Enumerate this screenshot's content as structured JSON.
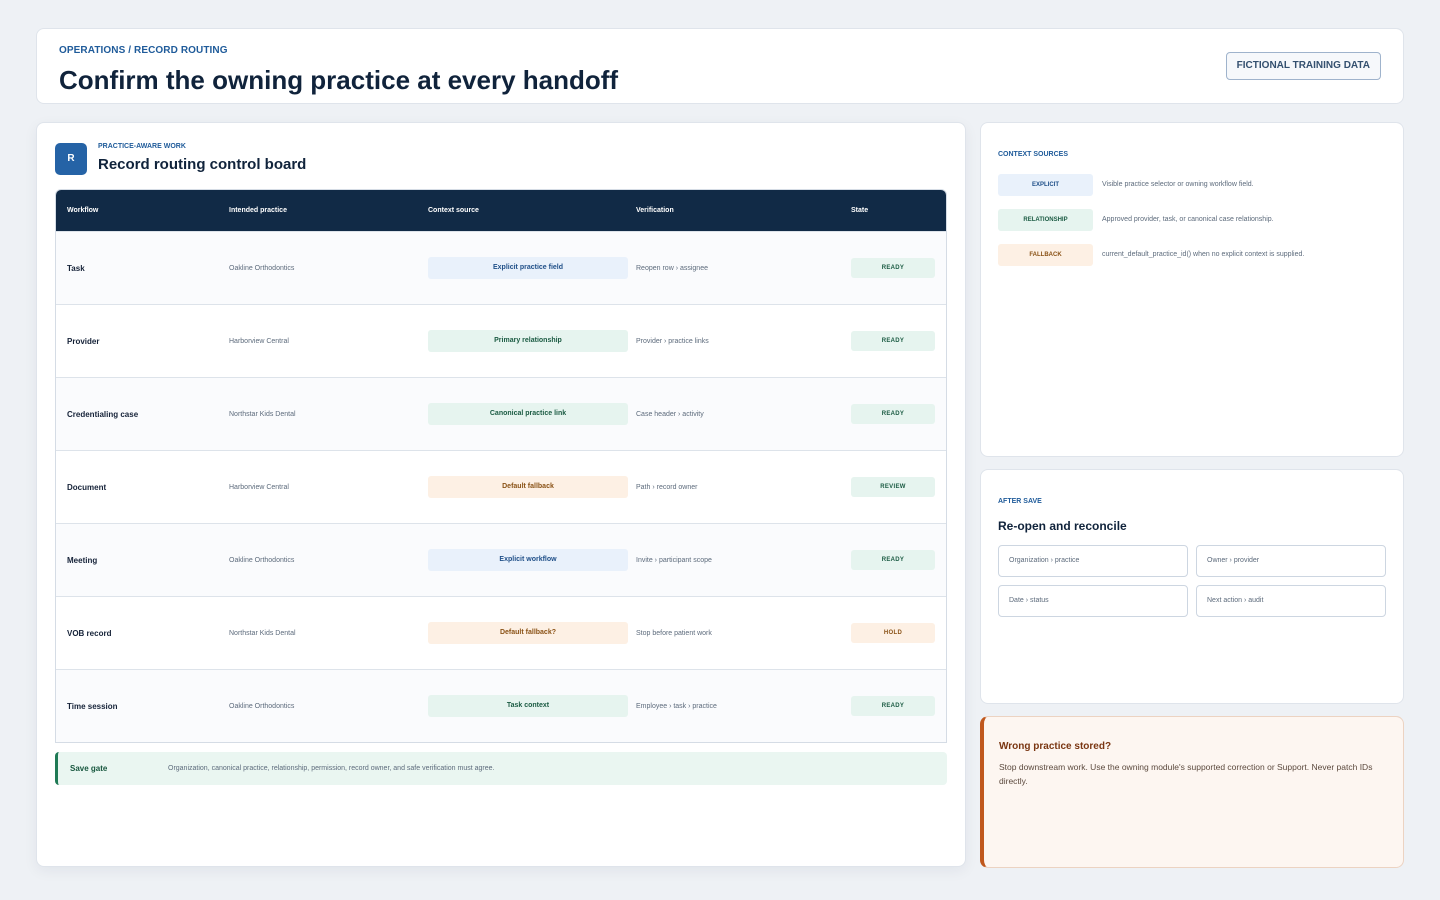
{
  "header": {
    "breadcrumb": "OPERATIONS / RECORD ROUTING",
    "title": "Confirm the owning practice at every handoff",
    "badge": "FICTIONAL TRAINING DATA"
  },
  "board": {
    "logo_letter": "R",
    "eyebrow": "PRACTICE-AWARE WORK",
    "title": "Record routing control board",
    "columns": [
      "Workflow",
      "Intended practice",
      "Context source",
      "Verification",
      "State"
    ],
    "rows": [
      {
        "workflow": "Task",
        "practice": "Oakline Orthodontics",
        "source": "Explicit practice field",
        "source_kind": "explicit",
        "verification": "Reopen row › assignee",
        "state": "READY",
        "state_kind": "ready"
      },
      {
        "workflow": "Provider",
        "practice": "Harborview Central",
        "source": "Primary relationship",
        "source_kind": "relationship",
        "verification": "Provider › practice links",
        "state": "READY",
        "state_kind": "ready"
      },
      {
        "workflow": "Credentialing case",
        "practice": "Northstar Kids Dental",
        "source": "Canonical practice link",
        "source_kind": "relationship",
        "verification": "Case header › activity",
        "state": "READY",
        "state_kind": "ready"
      },
      {
        "workflow": "Document",
        "practice": "Harborview Central",
        "source": "Default fallback",
        "source_kind": "fallback",
        "verification": "Path › record owner",
        "state": "REVIEW",
        "state_kind": "review"
      },
      {
        "workflow": "Meeting",
        "practice": "Oakline Orthodontics",
        "source": "Explicit workflow",
        "source_kind": "explicit",
        "verification": "Invite › participant scope",
        "state": "READY",
        "state_kind": "ready"
      },
      {
        "workflow": "VOB record",
        "practice": "Northstar Kids Dental",
        "source": "Default fallback?",
        "source_kind": "fallback",
        "verification": "Stop before patient work",
        "state": "HOLD",
        "state_kind": "hold"
      },
      {
        "workflow": "Time session",
        "practice": "Oakline Orthodontics",
        "source": "Task context",
        "source_kind": "relationship",
        "verification": "Employee › task › practice",
        "state": "READY",
        "state_kind": "ready"
      }
    ],
    "gate": {
      "label": "Save gate",
      "text": "Organization, canonical practice, relationship, permission, record owner, and safe verification must agree."
    }
  },
  "context_sources": {
    "eyebrow": "CONTEXT SOURCES",
    "items": [
      {
        "tag": "EXPLICIT",
        "kind": "explicit",
        "description": "Visible practice selector or owning workflow field."
      },
      {
        "tag": "RELATIONSHIP",
        "kind": "relationship",
        "description": "Approved provider, task, or canonical case relationship."
      },
      {
        "tag": "FALLBACK",
        "kind": "fallback",
        "description": "current_default_practice_id() when no explicit context is supplied."
      }
    ]
  },
  "after_save": {
    "eyebrow": "AFTER SAVE",
    "title": "Re-open and reconcile",
    "chips": [
      "Organization › practice",
      "Owner › provider",
      "Date › status",
      "Next action › audit"
    ]
  },
  "warning": {
    "title": "Wrong practice stored?",
    "text": "Stop downstream work. Use the owning module's supported correction or Support. Never patch IDs directly."
  },
  "colors": {
    "navy": "#112a46",
    "accent_blue": "#2563a6",
    "ready_green": "#1b5b43",
    "fallback_orange": "#8a5216",
    "warning_border": "#c0581d"
  }
}
